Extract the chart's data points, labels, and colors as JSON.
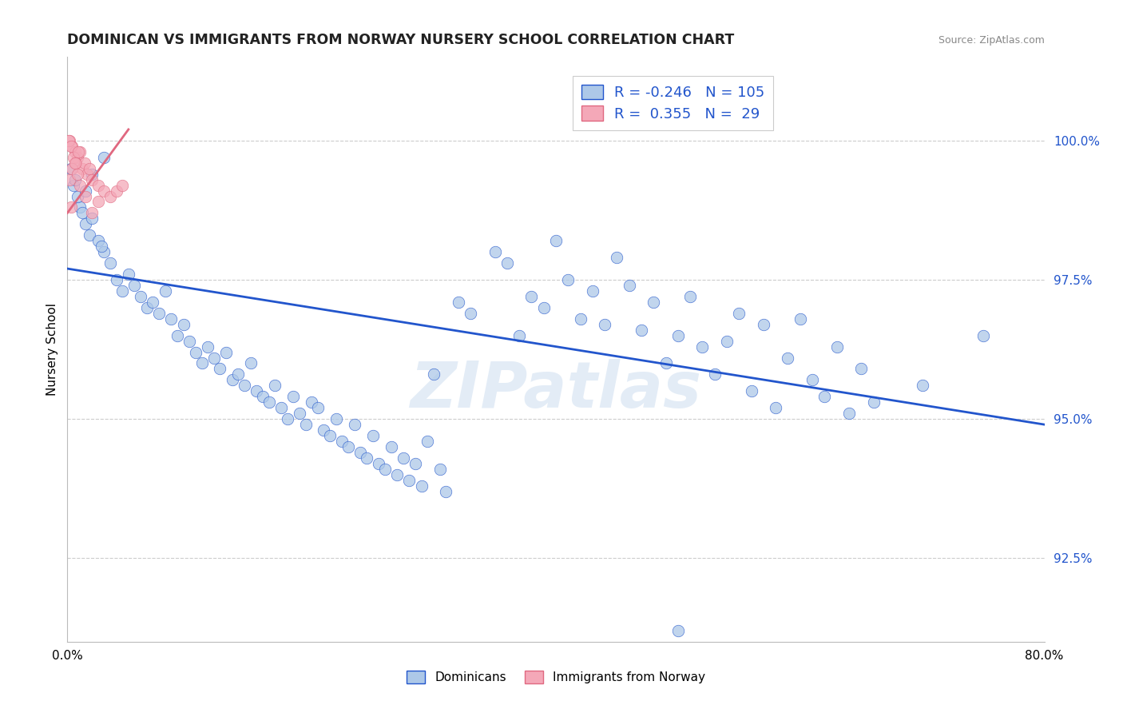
{
  "title": "DOMINICAN VS IMMIGRANTS FROM NORWAY NURSERY SCHOOL CORRELATION CHART",
  "source": "Source: ZipAtlas.com",
  "ylabel": "Nursery School",
  "xlim": [
    0.0,
    80.0
  ],
  "ylim": [
    91.0,
    101.5
  ],
  "yticks": [
    92.5,
    95.0,
    97.5,
    100.0
  ],
  "ytick_labels": [
    "92.5%",
    "95.0%",
    "97.5%",
    "100.0%"
  ],
  "legend_blue_r": "-0.246",
  "legend_blue_n": "105",
  "legend_pink_r": "0.355",
  "legend_pink_n": "29",
  "legend_label_blue": "Dominicans",
  "legend_label_pink": "Immigrants from Norway",
  "dot_color_blue": "#adc8e8",
  "dot_color_pink": "#f4a8b8",
  "line_color_blue": "#2255cc",
  "line_color_pink": "#e06880",
  "watermark": "ZIPatlas",
  "blue_dots": [
    [
      0.5,
      99.2
    ],
    [
      1.0,
      98.8
    ],
    [
      1.5,
      98.5
    ],
    [
      0.3,
      99.5
    ],
    [
      0.8,
      99.0
    ],
    [
      1.2,
      98.7
    ],
    [
      0.6,
      99.3
    ],
    [
      1.8,
      98.3
    ],
    [
      2.0,
      98.6
    ],
    [
      2.5,
      98.2
    ],
    [
      3.0,
      98.0
    ],
    [
      3.5,
      97.8
    ],
    [
      2.8,
      98.1
    ],
    [
      4.0,
      97.5
    ],
    [
      4.5,
      97.3
    ],
    [
      5.0,
      97.6
    ],
    [
      5.5,
      97.4
    ],
    [
      6.0,
      97.2
    ],
    [
      6.5,
      97.0
    ],
    [
      7.0,
      97.1
    ],
    [
      7.5,
      96.9
    ],
    [
      8.0,
      97.3
    ],
    [
      8.5,
      96.8
    ],
    [
      9.0,
      96.5
    ],
    [
      9.5,
      96.7
    ],
    [
      10.0,
      96.4
    ],
    [
      10.5,
      96.2
    ],
    [
      11.0,
      96.0
    ],
    [
      11.5,
      96.3
    ],
    [
      12.0,
      96.1
    ],
    [
      12.5,
      95.9
    ],
    [
      13.0,
      96.2
    ],
    [
      13.5,
      95.7
    ],
    [
      14.0,
      95.8
    ],
    [
      14.5,
      95.6
    ],
    [
      15.0,
      96.0
    ],
    [
      15.5,
      95.5
    ],
    [
      16.0,
      95.4
    ],
    [
      16.5,
      95.3
    ],
    [
      17.0,
      95.6
    ],
    [
      17.5,
      95.2
    ],
    [
      18.0,
      95.0
    ],
    [
      18.5,
      95.4
    ],
    [
      19.0,
      95.1
    ],
    [
      19.5,
      94.9
    ],
    [
      20.0,
      95.3
    ],
    [
      20.5,
      95.2
    ],
    [
      21.0,
      94.8
    ],
    [
      21.5,
      94.7
    ],
    [
      22.0,
      95.0
    ],
    [
      22.5,
      94.6
    ],
    [
      23.0,
      94.5
    ],
    [
      23.5,
      94.9
    ],
    [
      24.0,
      94.4
    ],
    [
      24.5,
      94.3
    ],
    [
      25.0,
      94.7
    ],
    [
      25.5,
      94.2
    ],
    [
      26.0,
      94.1
    ],
    [
      26.5,
      94.5
    ],
    [
      27.0,
      94.0
    ],
    [
      27.5,
      94.3
    ],
    [
      28.0,
      93.9
    ],
    [
      28.5,
      94.2
    ],
    [
      29.0,
      93.8
    ],
    [
      29.5,
      94.6
    ],
    [
      30.0,
      95.8
    ],
    [
      30.5,
      94.1
    ],
    [
      31.0,
      93.7
    ],
    [
      32.0,
      97.1
    ],
    [
      33.0,
      96.9
    ],
    [
      35.0,
      98.0
    ],
    [
      36.0,
      97.8
    ],
    [
      37.0,
      96.5
    ],
    [
      38.0,
      97.2
    ],
    [
      39.0,
      97.0
    ],
    [
      40.0,
      98.2
    ],
    [
      41.0,
      97.5
    ],
    [
      42.0,
      96.8
    ],
    [
      43.0,
      97.3
    ],
    [
      44.0,
      96.7
    ],
    [
      45.0,
      97.9
    ],
    [
      46.0,
      97.4
    ],
    [
      47.0,
      96.6
    ],
    [
      48.0,
      97.1
    ],
    [
      49.0,
      96.0
    ],
    [
      50.0,
      96.5
    ],
    [
      51.0,
      97.2
    ],
    [
      52.0,
      96.3
    ],
    [
      53.0,
      95.8
    ],
    [
      54.0,
      96.4
    ],
    [
      55.0,
      96.9
    ],
    [
      56.0,
      95.5
    ],
    [
      57.0,
      96.7
    ],
    [
      58.0,
      95.2
    ],
    [
      59.0,
      96.1
    ],
    [
      60.0,
      96.8
    ],
    [
      61.0,
      95.7
    ],
    [
      62.0,
      95.4
    ],
    [
      63.0,
      96.3
    ],
    [
      64.0,
      95.1
    ],
    [
      65.0,
      95.9
    ],
    [
      66.0,
      95.3
    ],
    [
      70.0,
      95.6
    ],
    [
      75.0,
      96.5
    ],
    [
      50.0,
      91.2
    ],
    [
      3.0,
      99.7
    ],
    [
      2.0,
      99.4
    ],
    [
      1.5,
      99.1
    ]
  ],
  "pink_dots": [
    [
      0.2,
      100.0
    ],
    [
      0.4,
      99.9
    ],
    [
      0.6,
      99.8
    ],
    [
      0.8,
      99.7
    ],
    [
      1.0,
      99.8
    ],
    [
      0.1,
      100.0
    ],
    [
      0.3,
      99.9
    ],
    [
      0.5,
      99.7
    ],
    [
      0.7,
      99.6
    ],
    [
      0.9,
      99.8
    ],
    [
      1.2,
      99.5
    ],
    [
      1.4,
      99.6
    ],
    [
      1.6,
      99.4
    ],
    [
      1.8,
      99.5
    ],
    [
      2.0,
      99.3
    ],
    [
      2.5,
      99.2
    ],
    [
      3.0,
      99.1
    ],
    [
      3.5,
      99.0
    ],
    [
      4.0,
      99.1
    ],
    [
      4.5,
      99.2
    ],
    [
      0.2,
      99.3
    ],
    [
      0.4,
      99.5
    ],
    [
      0.6,
      99.6
    ],
    [
      0.3,
      98.8
    ],
    [
      0.8,
      99.4
    ],
    [
      1.0,
      99.2
    ],
    [
      1.5,
      99.0
    ],
    [
      2.0,
      98.7
    ],
    [
      2.5,
      98.9
    ]
  ],
  "blue_trend_x": [
    0.0,
    80.0
  ],
  "blue_trend_y": [
    97.7,
    94.9
  ],
  "pink_trend_x": [
    0.0,
    5.0
  ],
  "pink_trend_y": [
    98.7,
    100.2
  ]
}
